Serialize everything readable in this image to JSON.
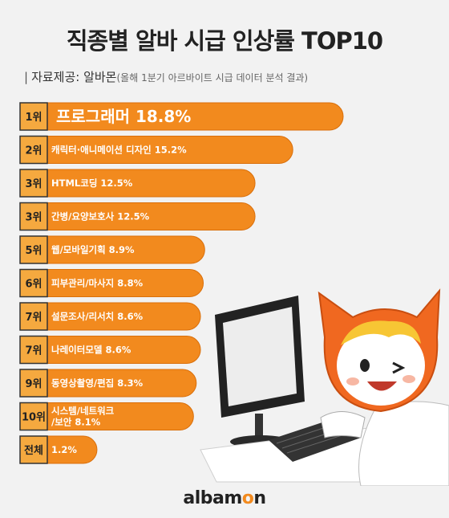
{
  "title": "직종별 알바 시급 인상률 TOP10",
  "source": {
    "mark": "|",
    "label": "자료제공: 알바몬",
    "note": "(올해 1분기 아르바이트 시급 데이터 분석 결과)"
  },
  "logo": {
    "part1": "albam",
    "accent": "o",
    "part2": "n"
  },
  "colors": {
    "bar": "#f28a1e",
    "bar_dark": "#d96f0b",
    "rank_bg": "#f5a93f",
    "label": "#ffffff"
  },
  "chart_data": {
    "type": "bar",
    "orientation": "horizontal",
    "title": "직종별 알바 시급 인상률 TOP10",
    "unit": "%",
    "bars": [
      {
        "rank": "1위",
        "label": "프로그래머 18.8%",
        "value": 18.8
      },
      {
        "rank": "2위",
        "label": "캐릭터·애니메이션 디자인 15.2%",
        "value": 15.2
      },
      {
        "rank": "3위",
        "label": "HTML코딩 12.5%",
        "value": 12.5
      },
      {
        "rank": "3위",
        "label": "간병/요양보호사 12.5%",
        "value": 12.5
      },
      {
        "rank": "5위",
        "label": "웹/모바일기획 8.9%",
        "value": 8.9
      },
      {
        "rank": "6위",
        "label": "피부관리/마사지 8.8%",
        "value": 8.8
      },
      {
        "rank": "7위",
        "label": "설문조사/리서치 8.6%",
        "value": 8.6
      },
      {
        "rank": "7위",
        "label": "나레이터모델 8.6%",
        "value": 8.6
      },
      {
        "rank": "9위",
        "label": "동영상촬영/편집 8.3%",
        "value": 8.3
      },
      {
        "rank": "10위",
        "label_lines": [
          "시스템/네트워크",
          "/보안 8.1%"
        ],
        "value": 8.1
      },
      {
        "rank": "전체",
        "label": "1.2%",
        "value": 1.2
      }
    ]
  }
}
